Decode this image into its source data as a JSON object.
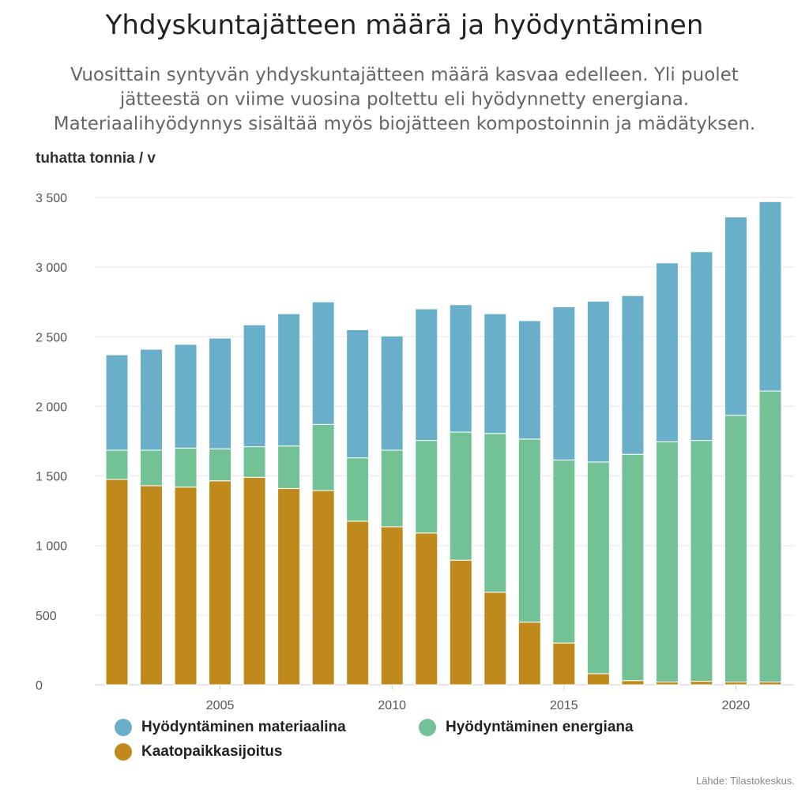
{
  "chart_data": {
    "type": "bar",
    "stacked": true,
    "title": "Yhdyskuntajätteen määrä ja hyödyntäminen",
    "subtitle": "Vuosittain syntyvän yhdyskuntajätteen määrä kasvaa edelleen. Yli puolet jätteestä on viime vuosina poltettu eli hyödynnetty energiana. Materiaalihyödynnys sisältää myös biojätteen kompostoinnin ja mädätyksen.",
    "ylabel": "tuhatta tonnia / v",
    "ylim": [
      0,
      3500
    ],
    "yticks": [
      0,
      500,
      1000,
      1500,
      2000,
      2500,
      3000,
      3500
    ],
    "ytick_labels": [
      "0",
      "500",
      "1 000",
      "1 500",
      "2 000",
      "2 500",
      "3 000",
      "3 500"
    ],
    "xticks": [
      2005,
      2010,
      2015,
      2020
    ],
    "xtick_labels": [
      "2005",
      "2010",
      "2015",
      "2020"
    ],
    "grid": true,
    "legend_position": "bottom",
    "categories": [
      2002,
      2003,
      2004,
      2005,
      2006,
      2007,
      2008,
      2009,
      2010,
      2011,
      2012,
      2013,
      2014,
      2015,
      2016,
      2017,
      2018,
      2019,
      2020,
      2021
    ],
    "series": [
      {
        "name": "Kaatopaikkasijoitus",
        "color": "#c0891c",
        "values": [
          1475,
          1430,
          1420,
          1465,
          1490,
          1410,
          1395,
          1175,
          1135,
          1090,
          895,
          665,
          450,
          300,
          80,
          30,
          20,
          25,
          20,
          20
        ]
      },
      {
        "name": "Hyödyntäminen energiana",
        "color": "#72c296",
        "values": [
          210,
          255,
          280,
          230,
          220,
          305,
          475,
          455,
          550,
          665,
          920,
          1140,
          1315,
          1315,
          1520,
          1625,
          1725,
          1730,
          1915,
          2090
        ]
      },
      {
        "name": "Hyödyntäminen materiaalina",
        "color": "#6aafc9",
        "values": [
          685,
          725,
          745,
          795,
          875,
          950,
          880,
          920,
          820,
          945,
          915,
          860,
          850,
          1100,
          1155,
          1140,
          1285,
          1355,
          1425,
          1360
        ]
      }
    ],
    "legend_order": [
      2,
      1,
      0
    ],
    "source": "Lähde: Tilastokeskus."
  }
}
